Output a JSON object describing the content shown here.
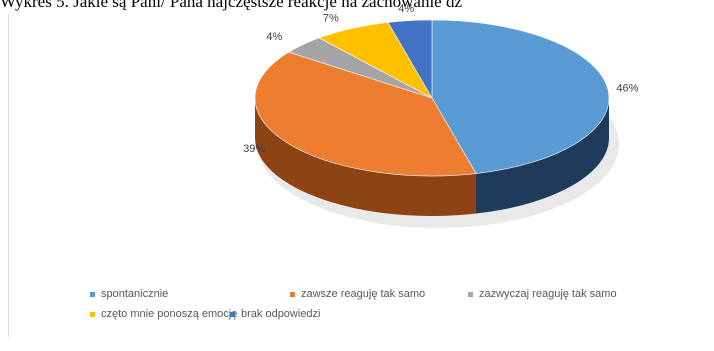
{
  "caption": "Wykres 5. Jakie są Pani/ Pana najczęstsze reakcje na zachowanie dz",
  "chart_data": {
    "type": "pie",
    "title": "",
    "categories": [
      "spontanicznie",
      "zawsze reaguję tak samo",
      "zazwyczaj reaguję tak samo",
      "częto mnie ponoszą emocję",
      "brak odpowiedzi"
    ],
    "values": [
      46,
      39,
      4,
      7,
      4
    ],
    "data_labels": [
      "46%",
      "39%",
      "4%",
      "7%",
      "4%"
    ],
    "colors": [
      "#5b9bd5",
      "#ed7d31",
      "#a5a5a5",
      "#ffc000",
      "#4472c4"
    ],
    "dark_colors": [
      "#1f3a5a",
      "#8e4314",
      "#5f5f5f",
      "#9a7400",
      "#233f72"
    ],
    "legend_position": "bottom",
    "style": "3d"
  }
}
